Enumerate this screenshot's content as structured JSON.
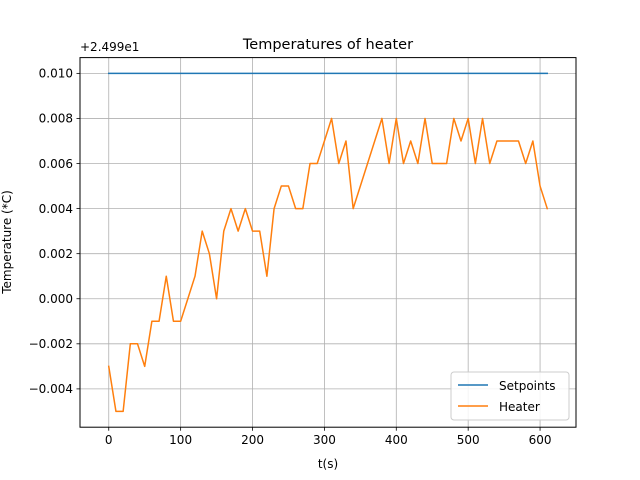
{
  "chart_data": {
    "type": "line",
    "title": "Temperatures of heater",
    "xlabel": "t(s)",
    "ylabel": "Temperature (*C)",
    "offset_label": "+2.499e1",
    "y_offset": 24.99,
    "xlim": [
      -40,
      650
    ],
    "ylim": [
      -0.0057,
      0.0107
    ],
    "x_ticks": [
      0,
      100,
      200,
      300,
      400,
      500,
      600
    ],
    "y_ticks": [
      -0.004,
      -0.002,
      0.0,
      0.002,
      0.004,
      0.006,
      0.008,
      0.01
    ],
    "x_tick_labels": [
      "0",
      "100",
      "200",
      "300",
      "400",
      "500",
      "600"
    ],
    "y_tick_labels": [
      "−0.004",
      "−0.002",
      "0.000",
      "0.002",
      "0.004",
      "0.006",
      "0.008",
      "0.010"
    ],
    "grid": true,
    "legend_position": "lower-right",
    "series": [
      {
        "name": "Setpoints",
        "color": "#1f77b4",
        "x": [
          0,
          610
        ],
        "y": [
          0.01,
          0.01
        ]
      },
      {
        "name": "Heater",
        "color": "#ff7f0e",
        "x": [
          0,
          10,
          20,
          30,
          40,
          50,
          60,
          70,
          80,
          90,
          100,
          110,
          120,
          130,
          140,
          150,
          160,
          170,
          180,
          190,
          200,
          210,
          220,
          230,
          240,
          250,
          260,
          270,
          280,
          290,
          300,
          310,
          320,
          330,
          340,
          380,
          390,
          400,
          410,
          420,
          430,
          440,
          450,
          460,
          470,
          480,
          490,
          500,
          510,
          520,
          530,
          540,
          570,
          580,
          590,
          600,
          610
        ],
        "y": [
          -0.003,
          -0.005,
          -0.005,
          -0.002,
          -0.002,
          -0.003,
          -0.001,
          -0.001,
          0.001,
          -0.001,
          -0.001,
          0.0,
          0.001,
          0.003,
          0.002,
          0.0,
          0.003,
          0.004,
          0.003,
          0.004,
          0.003,
          0.003,
          0.001,
          0.004,
          0.005,
          0.005,
          0.004,
          0.004,
          0.006,
          0.006,
          0.007,
          0.008,
          0.006,
          0.007,
          0.004,
          0.008,
          0.006,
          0.008,
          0.006,
          0.007,
          0.006,
          0.008,
          0.006,
          0.006,
          0.006,
          0.008,
          0.007,
          0.008,
          0.006,
          0.008,
          0.006,
          0.007,
          0.007,
          0.006,
          0.007,
          0.005,
          0.004
        ]
      }
    ]
  }
}
